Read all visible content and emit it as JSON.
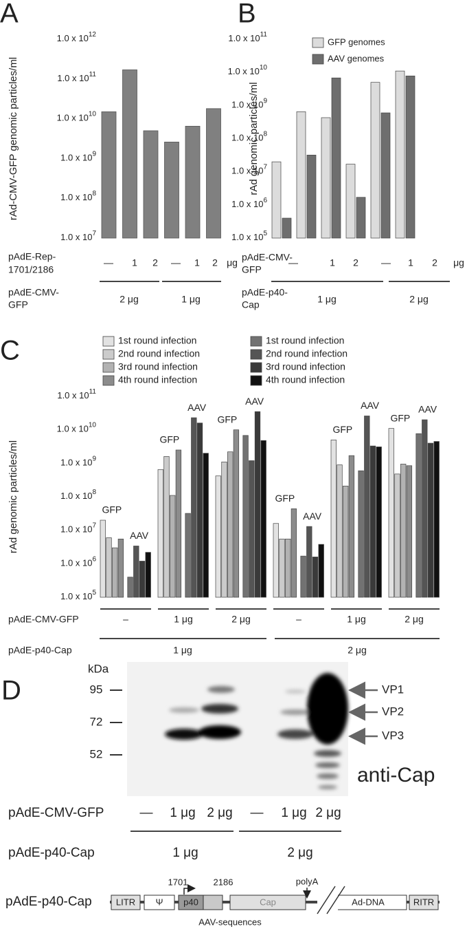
{
  "chart_data": [
    {
      "type": "bar",
      "panel": "A",
      "y_label": "rAd-CMV-GFP genomic particles/ml",
      "log_scale": true,
      "ylim": [
        10000000.0,
        1000000000000.0
      ],
      "yticks": [
        {
          "value": 10000000.0,
          "label": "1.0 x 10",
          "sup": "7"
        },
        {
          "value": 100000000.0,
          "label": "1.0 x 10",
          "sup": "8"
        },
        {
          "value": 1000000000.0,
          "label": "1.0 x 10",
          "sup": "9"
        },
        {
          "value": 10000000000.0,
          "label": "1.0 x 10",
          "sup": "10"
        },
        {
          "value": 100000000000.0,
          "label": "1.0 x 10",
          "sup": "11"
        },
        {
          "value": 1000000000000.0,
          "label": "1.0 x 10",
          "sup": "12"
        }
      ],
      "category_row": [
        "pAdE-Rep-",
        "1701/2186"
      ],
      "categories": [
        "—",
        "1",
        "2",
        "—",
        "1",
        "2"
      ],
      "unit": "μg",
      "group_row": [
        "pAdE-CMV-",
        "GFP"
      ],
      "groups": [
        "2 μg",
        "1 μg"
      ],
      "color": "#808080",
      "values": [
        15000000000.0,
        170000000000.0,
        5000000000.0,
        2600000000.0,
        6500000000.0,
        18000000000.0
      ]
    },
    {
      "type": "grouped-bar",
      "panel": "B",
      "y_label": "rAd genomic particles/ml",
      "log_scale": true,
      "ylim": [
        100000.0,
        100000000000.0
      ],
      "yticks": [
        {
          "value": 100000.0,
          "label": "1.0 x 10",
          "sup": "5"
        },
        {
          "value": 1000000.0,
          "label": "1.0 x 10",
          "sup": "6"
        },
        {
          "value": 10000000.0,
          "label": "1.0 x 10",
          "sup": "7"
        },
        {
          "value": 100000000.0,
          "label": "1.0 x 10",
          "sup": "8"
        },
        {
          "value": 1000000000.0,
          "label": "1.0 x 10",
          "sup": "9"
        },
        {
          "value": 10000000000.0,
          "label": "1.0 x 10",
          "sup": "10"
        },
        {
          "value": 100000000000.0,
          "label": "1.0 x 10",
          "sup": "11"
        }
      ],
      "category_row": [
        "pAdE-CMV-",
        "GFP"
      ],
      "categories": [
        "—",
        "1",
        "2",
        "—",
        "1",
        "2"
      ],
      "unit": "μg",
      "group_row": [
        "pAdE-p40-",
        "Cap"
      ],
      "groups": [
        "1 μg",
        "2 μg"
      ],
      "series": [
        {
          "name": "GFP genomes",
          "color": "#dcdcdc",
          "values": [
            20000000.0,
            650000000.0,
            430000000.0,
            17000000.0,
            5000000000.0,
            11000000000.0
          ]
        },
        {
          "name": "AAV genomes",
          "color": "#6e6e6e",
          "values": [
            400000.0,
            32000000.0,
            6800000000.0,
            1700000.0,
            600000000.0,
            7800000000.0
          ]
        }
      ]
    },
    {
      "type": "grouped-bar",
      "panel": "C",
      "y_label": "rAd genomic particles/ml",
      "log_scale": true,
      "ylim": [
        100000.0,
        100000000000.0
      ],
      "yticks": [
        {
          "value": 100000.0,
          "label": "1.0 x 10",
          "sup": "5"
        },
        {
          "value": 1000000.0,
          "label": "1.0 x 10",
          "sup": "6"
        },
        {
          "value": 10000000.0,
          "label": "1.0 x 10",
          "sup": "7"
        },
        {
          "value": 100000000.0,
          "label": "1.0 x 10",
          "sup": "8"
        },
        {
          "value": 1000000000.0,
          "label": "1.0 x 10",
          "sup": "9"
        },
        {
          "value": 10000000000.0,
          "label": "1.0 x 10",
          "sup": "10"
        },
        {
          "value": 100000000000.0,
          "label": "1.0 x 10",
          "sup": "11"
        }
      ],
      "annotations": [
        "GFP",
        "AAV"
      ],
      "category_row": [
        "pAdE-CMV-GFP"
      ],
      "categories": [
        "–",
        "1 μg",
        "2 μg",
        "–",
        "1 μg",
        "2 μg"
      ],
      "group_row": [
        "pAdE-p40-Cap"
      ],
      "groups": [
        "1 μg",
        "2 μg"
      ],
      "series": [
        {
          "name": "1st round infection",
          "color": "#e2e2e2",
          "values": [
            20000000.0,
            650000000.0,
            420000000.0,
            16000000.0,
            5000000000.0,
            11000000000.0
          ]
        },
        {
          "name": "2nd round infection",
          "color": "#cbcbcb",
          "values": [
            6000000.0,
            1600000000.0,
            1100000000.0,
            5500000.0,
            900000000.0,
            480000000.0
          ]
        },
        {
          "name": "3rd round infection",
          "color": "#b2b2b2",
          "values": [
            3000000.0,
            110000000.0,
            2200000000.0,
            5500000.0,
            210000000.0,
            950000000.0
          ]
        },
        {
          "name": "4th round infection",
          "color": "#8c8c8c",
          "values": [
            5500000.0,
            2500000000.0,
            10000000000.0,
            44000000.0,
            1700000000.0,
            850000000.0
          ]
        },
        {
          "name": "1st round infection",
          "color": "#727272",
          "values": [
            400000.0,
            32000000.0,
            6800000000.0,
            1700000.0,
            600000000.0,
            7700000000.0
          ]
        },
        {
          "name": "2nd round infection",
          "color": "#555555",
          "values": [
            3400000.0,
            23000000000.0,
            1200000000.0,
            13000000.0,
            26000000000.0,
            20000000000.0
          ]
        },
        {
          "name": "3rd round infection",
          "color": "#3a3a3a",
          "values": [
            1200000.0,
            16000000000.0,
            35000000000.0,
            1600000.0,
            3300000000.0,
            4000000000.0
          ]
        },
        {
          "name": "4th round infection",
          "color": "#111111",
          "values": [
            2200000.0,
            2000000000.0,
            4800000000.0,
            3800000.0,
            3100000000.0,
            4500000000.0
          ]
        }
      ]
    }
  ],
  "blot": {
    "panel": "D",
    "unit": "kDa",
    "markers": [
      "95",
      "72",
      "52"
    ],
    "bands": [
      "VP1",
      "VP2",
      "VP3"
    ],
    "antibody": "anti-Cap",
    "row1_label": "pAdE-CMV-GFP",
    "row1": [
      "—",
      "1 μg",
      "2 μg",
      "—",
      "1 μg",
      "2 μg"
    ],
    "row2_label": "pAdE-p40-Cap",
    "row2": [
      "1 μg",
      "2 μg"
    ]
  },
  "construct": {
    "label": "pAdE-p40-Cap",
    "elements": [
      "LITR",
      "Ψ",
      "p40",
      "Cap",
      "Ad-DNA",
      "RITR"
    ],
    "positions": [
      "1701",
      "2186"
    ],
    "polyA": "polyA",
    "region": "AAV-sequences"
  }
}
